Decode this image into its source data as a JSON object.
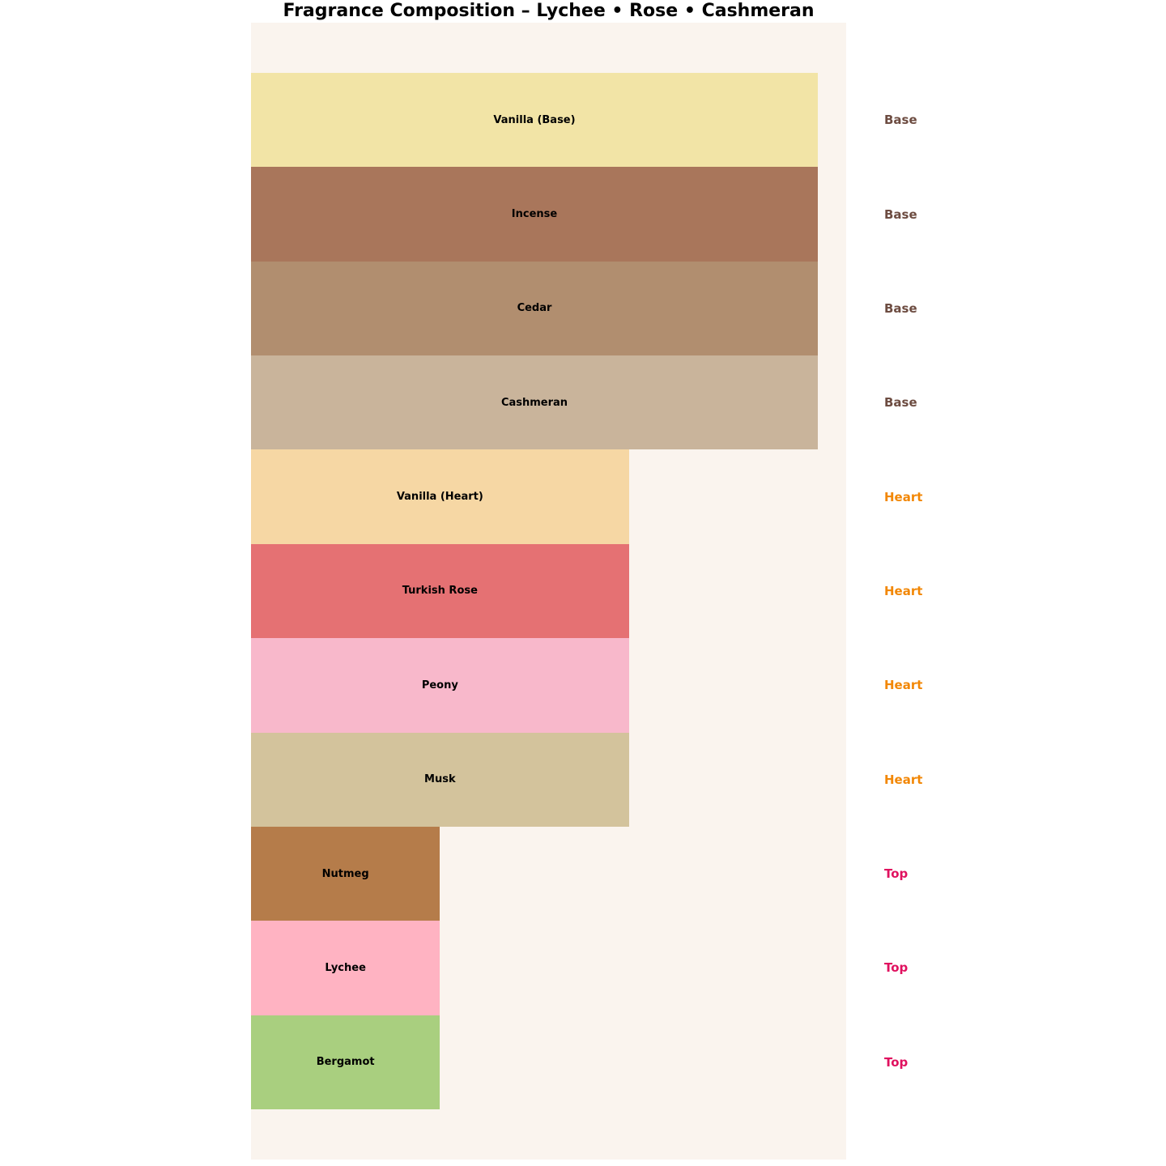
{
  "chart_data": {
    "type": "bar",
    "orientation": "horizontal",
    "title": "Fragrance Composition – Lychee • Rose • Cashmeran",
    "xlabel": "",
    "ylabel": "",
    "xlim": [
      0,
      3.15
    ],
    "grid": false,
    "legend": "none",
    "axes_visible": false,
    "plot_background": "#FAF4EE",
    "page_background": "#FFFFFF",
    "bar_label_color": "#000000",
    "categories": [
      "Vanilla (Base)",
      "Incense",
      "Cedar",
      "Cashmeran",
      "Vanilla (Heart)",
      "Turkish Rose",
      "Peony",
      "Musk",
      "Nutmeg",
      "Lychee",
      "Bergamot"
    ],
    "values": [
      3,
      3,
      3,
      3,
      2,
      2,
      2,
      2,
      1,
      1,
      1
    ],
    "notes": [
      {
        "label": "Vanilla (Base)",
        "tier": "Base",
        "value": 3,
        "color": "#F2E4A6"
      },
      {
        "label": "Incense",
        "tier": "Base",
        "value": 3,
        "color": "#A9765B"
      },
      {
        "label": "Cedar",
        "tier": "Base",
        "value": 3,
        "color": "#B18E6F"
      },
      {
        "label": "Cashmeran",
        "tier": "Base",
        "value": 3,
        "color": "#C9B49B"
      },
      {
        "label": "Vanilla (Heart)",
        "tier": "Heart",
        "value": 2,
        "color": "#F6D7A4"
      },
      {
        "label": "Turkish Rose",
        "tier": "Heart",
        "value": 2,
        "color": "#E57173"
      },
      {
        "label": "Peony",
        "tier": "Heart",
        "value": 2,
        "color": "#F8B8CB"
      },
      {
        "label": "Musk",
        "tier": "Heart",
        "value": 2,
        "color": "#D3C39C"
      },
      {
        "label": "Nutmeg",
        "tier": "Top",
        "value": 1,
        "color": "#B57C4A"
      },
      {
        "label": "Lychee",
        "tier": "Top",
        "value": 1,
        "color": "#FFB3C2"
      },
      {
        "label": "Bergamot",
        "tier": "Top",
        "value": 1,
        "color": "#A9CF7F"
      }
    ],
    "tier_labels": [
      "Base",
      "Base",
      "Base",
      "Base",
      "Heart",
      "Heart",
      "Heart",
      "Heart",
      "Top",
      "Top",
      "Top"
    ],
    "tier_colors": {
      "Base": "#6D4C41",
      "Heart": "#F28705",
      "Top": "#E0115F"
    }
  }
}
